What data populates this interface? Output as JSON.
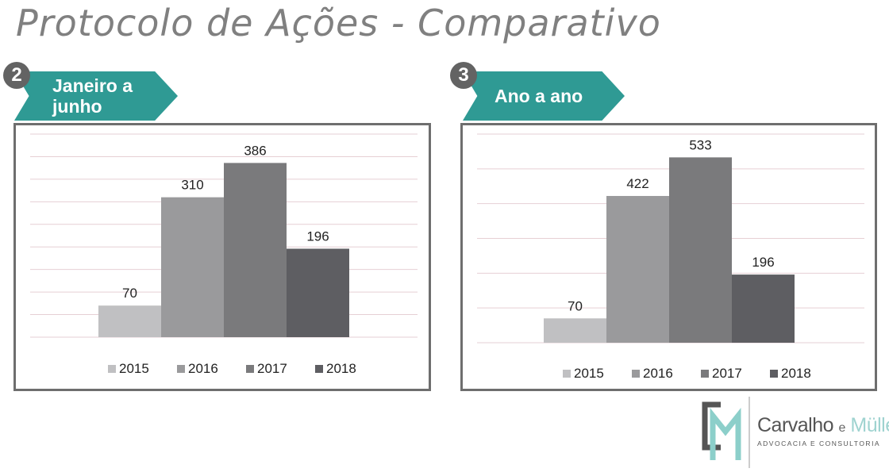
{
  "title": "Protocolo de Ações - Comparativo",
  "colors": {
    "teal": "#2f9a94",
    "badge": "#636363",
    "border": "#6e6e6e",
    "grid": "#e6cfd4"
  },
  "panels": [
    {
      "badge": "2",
      "label_line1": "Janeiro a",
      "label_line2": "junho"
    },
    {
      "badge": "3",
      "label_line1": "Ano a ano",
      "label_line2": ""
    }
  ],
  "chart_data": [
    {
      "type": "bar",
      "title": "",
      "categories": [
        "2015",
        "2016",
        "2017",
        "2018"
      ],
      "values": [
        70,
        310,
        386,
        196
      ],
      "colors": [
        "#c0c0c2",
        "#9a9a9c",
        "#7a7a7c",
        "#5e5e62"
      ],
      "ylim": [
        0,
        450
      ],
      "grid": true,
      "legend": "bottom"
    },
    {
      "type": "bar",
      "title": "",
      "categories": [
        "2015",
        "2016",
        "2017",
        "2018"
      ],
      "values": [
        70,
        422,
        533,
        196
      ],
      "colors": [
        "#c0c0c2",
        "#9a9a9c",
        "#7a7a7c",
        "#5e5e62"
      ],
      "ylim": [
        0,
        600
      ],
      "grid": true,
      "legend": "bottom"
    }
  ],
  "logo": {
    "name_a": "Carvalho",
    "name_e": "e",
    "name_b": "Müller",
    "subtitle": "ADVOCACIA E CONSULTORIA"
  }
}
